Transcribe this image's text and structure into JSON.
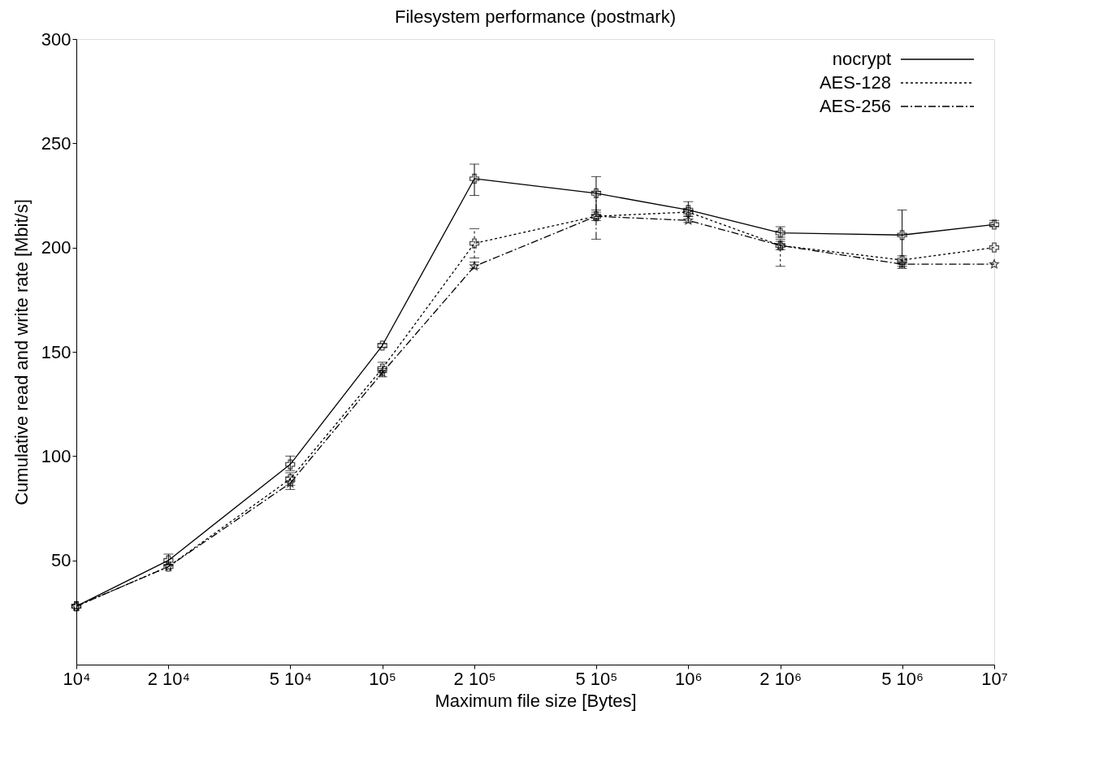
{
  "chart_data": {
    "type": "line",
    "title": "Filesystem performance (postmark)",
    "xlabel": "Maximum file size [Bytes]",
    "ylabel": "Cumulative read and write rate [Mbit/s]",
    "x": [
      10000,
      20000,
      50000,
      100000,
      200000,
      500000,
      1000000,
      2000000,
      5000000,
      10000000
    ],
    "log": "x",
    "xlim": [
      10000,
      10000000
    ],
    "xticks": [
      {
        "value": 10000,
        "label": "10⁴"
      },
      {
        "value": 20000,
        "label": "2 10⁴"
      },
      {
        "value": 50000,
        "label": "5 10⁴"
      },
      {
        "value": 100000,
        "label": "10⁵"
      },
      {
        "value": 200000,
        "label": "2 10⁵"
      },
      {
        "value": 500000,
        "label": "5 10⁵"
      },
      {
        "value": 1000000,
        "label": "10⁶"
      },
      {
        "value": 2000000,
        "label": "2 10⁶"
      },
      {
        "value": 5000000,
        "label": "5 10⁶"
      },
      {
        "value": 10000000,
        "label": "10⁷"
      }
    ],
    "ylim": [
      0,
      300
    ],
    "yticks": [
      50,
      100,
      150,
      200,
      250,
      300
    ],
    "grid": false,
    "legend": "top right",
    "series": [
      {
        "name": "nocrypt",
        "color": "#000000",
        "line_style": "solid",
        "marker": "cross",
        "values": [
          28,
          50,
          96,
          153,
          233,
          226,
          218,
          207,
          206,
          211
        ],
        "errors": [
          null,
          [
            48,
            53
          ],
          [
            93,
            100
          ],
          [
            152,
            154
          ],
          [
            225,
            240
          ],
          [
            217,
            234
          ],
          [
            215,
            222
          ],
          [
            205,
            210
          ],
          [
            192,
            218
          ],
          [
            210,
            213
          ]
        ]
      },
      {
        "name": "AES-128",
        "color": "#000000",
        "line_style": "dotted",
        "marker": "cross",
        "values": [
          28,
          47,
          89,
          142,
          202,
          215,
          217,
          201,
          194,
          200
        ],
        "errors": [
          null,
          null,
          [
            86,
            92
          ],
          [
            140,
            145
          ],
          [
            195,
            209
          ],
          [
            213,
            218
          ],
          null,
          [
            191,
            203
          ],
          [
            191,
            196
          ],
          null
        ]
      },
      {
        "name": "AES-256",
        "color": "#000000",
        "line_style": "dashed",
        "marker": "star",
        "values": [
          28,
          47,
          87,
          140,
          191,
          215,
          213,
          201,
          192,
          192
        ],
        "errors": [
          null,
          null,
          [
            84,
            90
          ],
          [
            138,
            142
          ],
          [
            190,
            193
          ],
          [
            204,
            227
          ],
          [
            212,
            215
          ],
          [
            199,
            204
          ],
          [
            190,
            194
          ],
          null
        ]
      }
    ]
  }
}
